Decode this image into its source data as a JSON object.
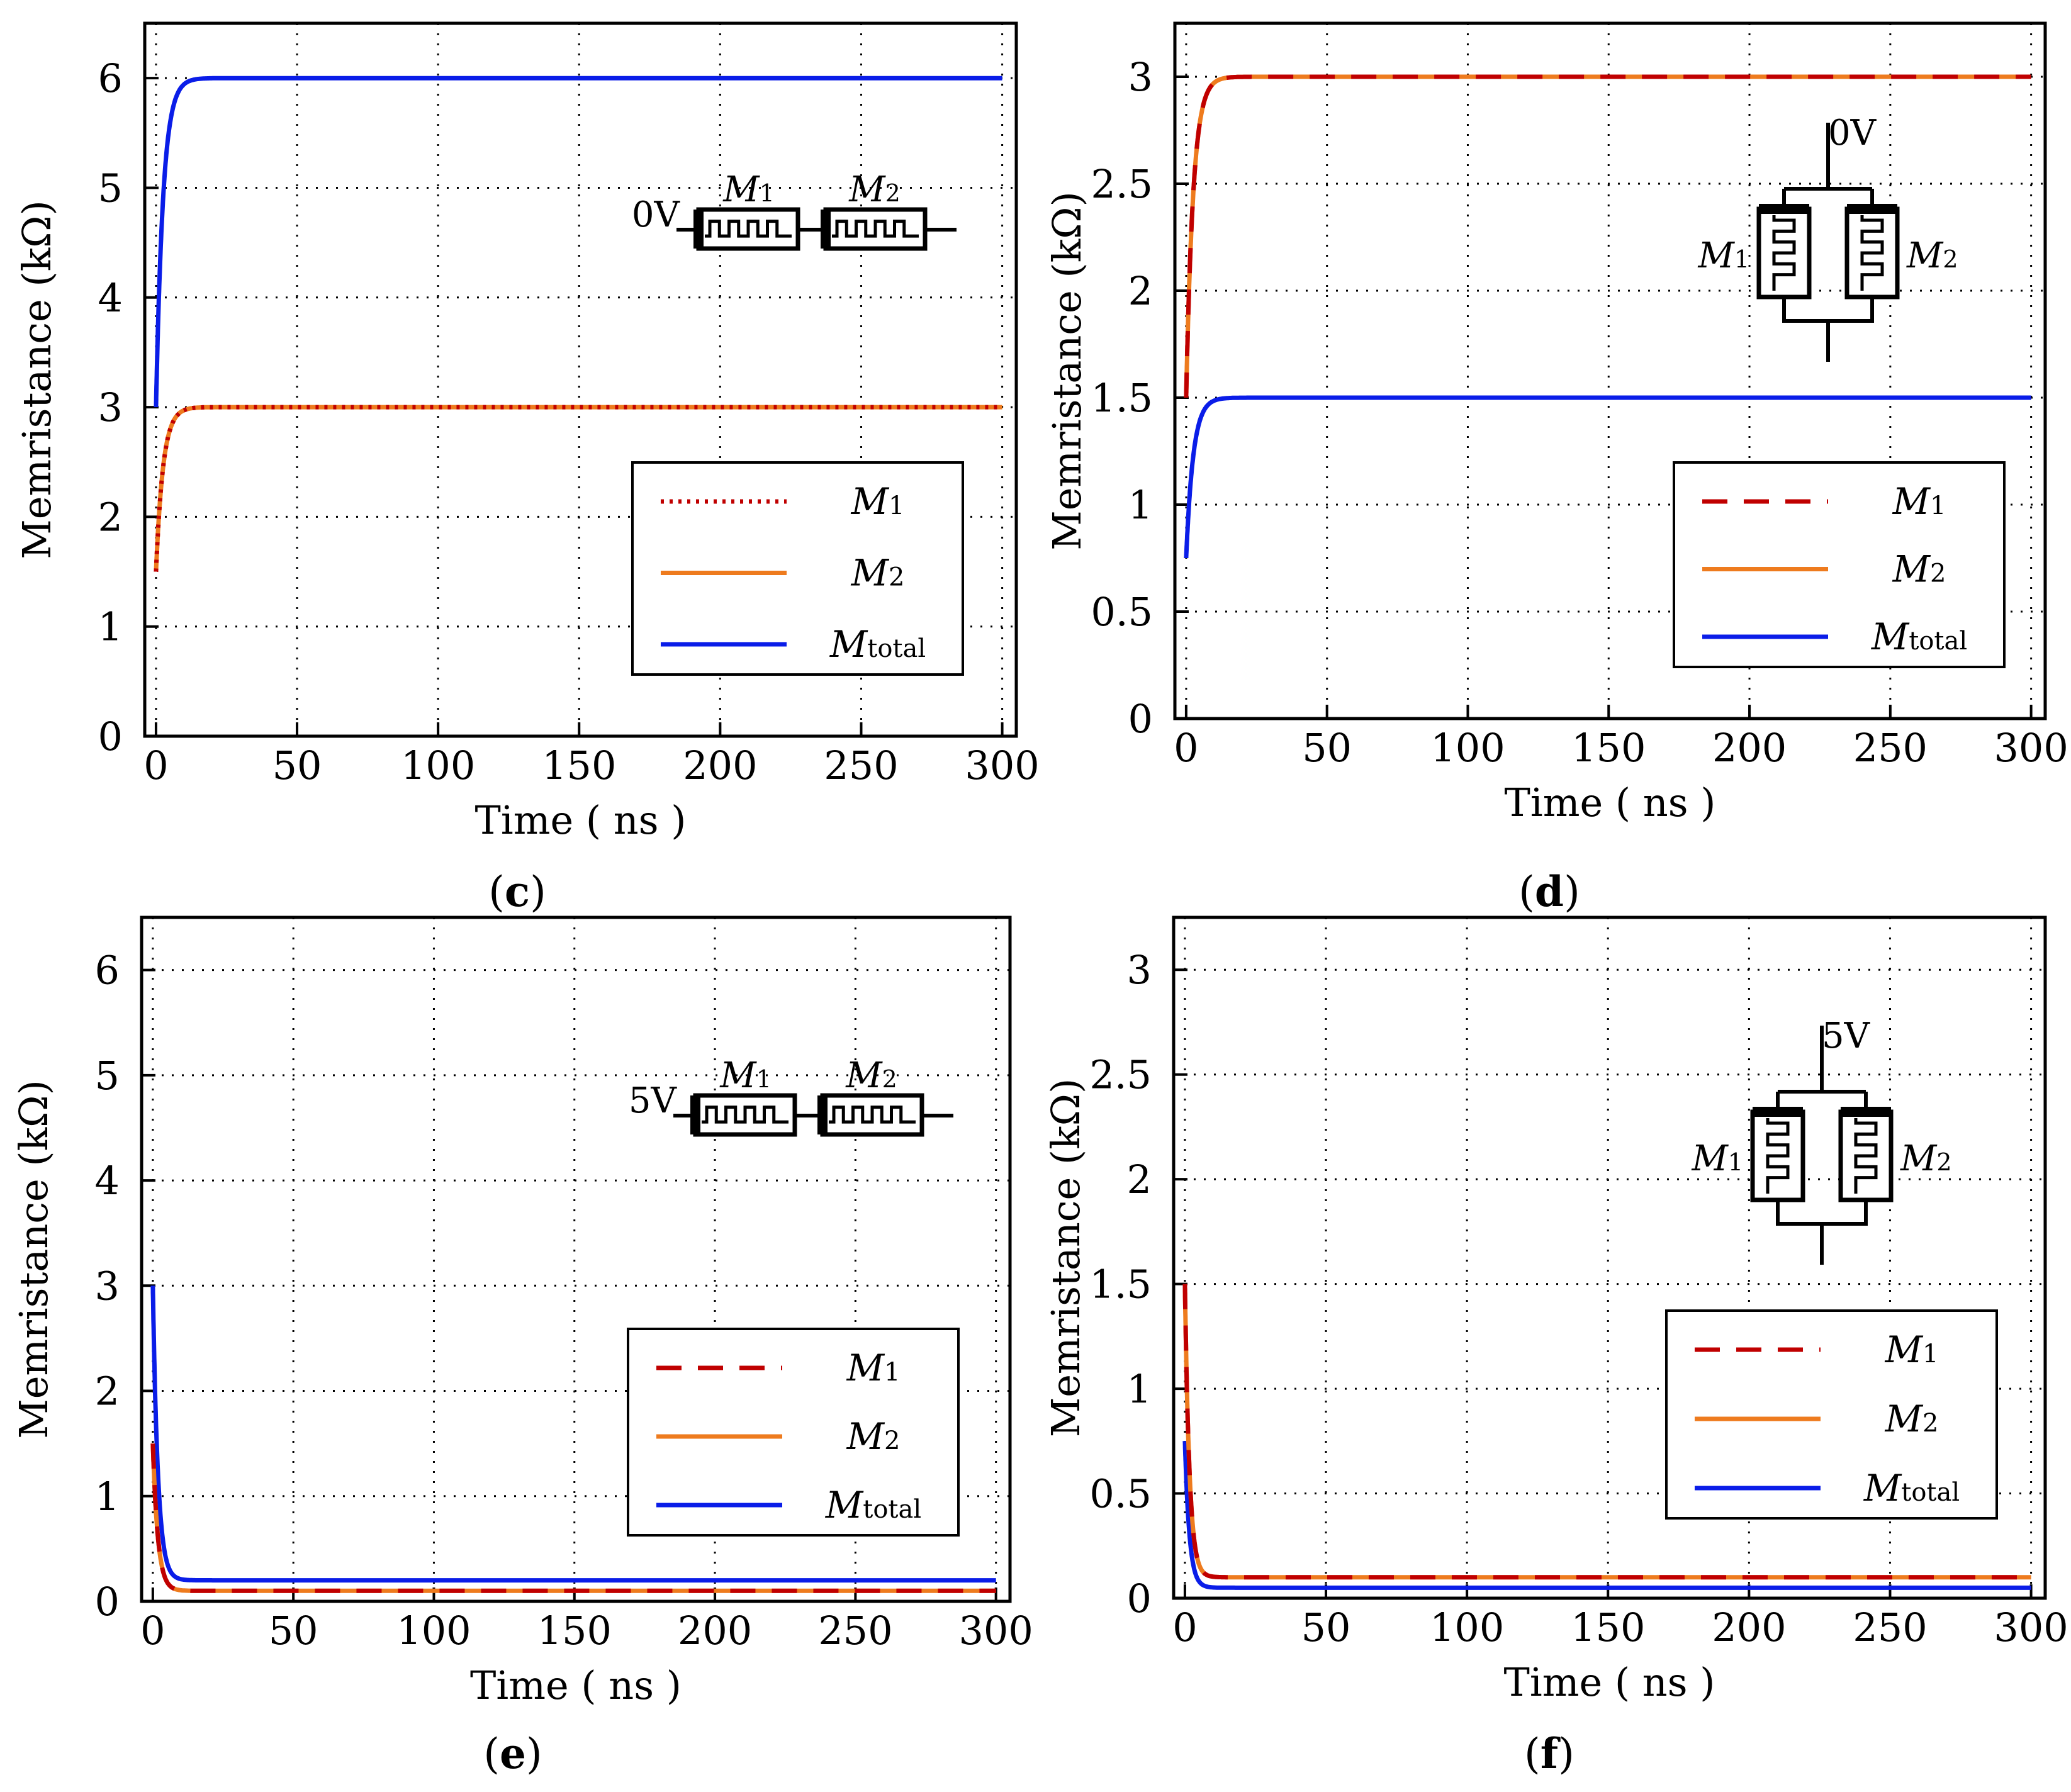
{
  "colors": {
    "m1": "#c00000",
    "m2": "#ee7b1e",
    "mtotal": "#0a1de8",
    "grid": "#000000"
  },
  "panels": [
    {
      "id": "c",
      "caption_letter": "c",
      "circuit": {
        "type": "series",
        "voltage": "0V"
      },
      "chart_data": {
        "type": "line",
        "xlabel": "Time ( ns )",
        "ylabel": "Memristance (kΩ)",
        "xlim": [
          -4,
          305
        ],
        "ylim": [
          0,
          6.5
        ],
        "xticks": [
          0,
          50,
          100,
          150,
          200,
          250,
          300
        ],
        "yticks": [
          0,
          1,
          2,
          3,
          4,
          5,
          6
        ],
        "ytick_labels": [
          "0",
          "1",
          "2",
          "3",
          "4",
          "5",
          "6"
        ],
        "grid": true,
        "legend_position": "lower-right",
        "series": [
          {
            "key": "m1",
            "name": "M",
            "subscript": "1",
            "style": "dotted",
            "start": 1.5,
            "end": 3.0,
            "tau": 2.5,
            "x_end": 300
          },
          {
            "key": "m2",
            "name": "M",
            "subscript": "2",
            "style": "solid",
            "start": 1.5,
            "end": 3.0,
            "tau": 2.5,
            "x_end": 300
          },
          {
            "key": "mtotal",
            "name": "M",
            "subscript": "total",
            "style": "solid",
            "start": 3.0,
            "end": 6.0,
            "tau": 2.5,
            "x_end": 300
          }
        ]
      }
    },
    {
      "id": "d",
      "caption_letter": "d",
      "circuit": {
        "type": "parallel",
        "voltage": "0V"
      },
      "chart_data": {
        "type": "line",
        "xlabel": "Time ( ns )",
        "ylabel": "Memristance (kΩ)",
        "xlim": [
          -4,
          305
        ],
        "ylim": [
          0,
          3.25
        ],
        "xticks": [
          0,
          50,
          100,
          150,
          200,
          250,
          300
        ],
        "yticks": [
          0,
          0.5,
          1,
          1.5,
          2,
          2.5,
          3
        ],
        "ytick_labels": [
          "0",
          "0.5",
          "1",
          "1.5",
          "2",
          "2.5",
          "3"
        ],
        "grid": true,
        "legend_position": "lower-right",
        "series": [
          {
            "key": "m1",
            "name": "M",
            "subscript": "1",
            "style": "dashed",
            "start": 1.5,
            "end": 3.0,
            "tau": 2.5,
            "x_end": 300
          },
          {
            "key": "m2",
            "name": "M",
            "subscript": "2",
            "style": "solid",
            "start": 1.5,
            "end": 3.0,
            "tau": 2.5,
            "x_end": 300
          },
          {
            "key": "mtotal",
            "name": "M",
            "subscript": "total",
            "style": "solid",
            "start": 0.75,
            "end": 1.5,
            "tau": 2.5,
            "x_end": 300
          }
        ]
      }
    },
    {
      "id": "e",
      "caption_letter": "e",
      "circuit": {
        "type": "series",
        "voltage": "5V"
      },
      "chart_data": {
        "type": "line",
        "xlabel": "Time ( ns )",
        "ylabel": "Memristance (kΩ)",
        "xlim": [
          -4,
          305
        ],
        "ylim": [
          0,
          6.5
        ],
        "xticks": [
          0,
          50,
          100,
          150,
          200,
          250,
          300
        ],
        "yticks": [
          0,
          1,
          2,
          3,
          4,
          5,
          6
        ],
        "ytick_labels": [
          "0",
          "1",
          "2",
          "3",
          "4",
          "5",
          "6"
        ],
        "grid": true,
        "legend_position": "lower-right",
        "series": [
          {
            "key": "m1",
            "name": "M",
            "subscript": "1",
            "style": "dashed",
            "start": 1.5,
            "end": 0.1,
            "tau": 1.8,
            "x_end": 300
          },
          {
            "key": "m2",
            "name": "M",
            "subscript": "2",
            "style": "solid",
            "start": 1.5,
            "end": 0.1,
            "tau": 1.8,
            "x_end": 300
          },
          {
            "key": "mtotal",
            "name": "M",
            "subscript": "total",
            "style": "solid",
            "start": 3.0,
            "end": 0.2,
            "tau": 1.8,
            "x_end": 300
          }
        ]
      }
    },
    {
      "id": "f",
      "caption_letter": "f",
      "circuit": {
        "type": "parallel",
        "voltage": "5V"
      },
      "chart_data": {
        "type": "line",
        "xlabel": "Time ( ns )",
        "ylabel": "Memristance (kΩ)",
        "xlim": [
          -4,
          305
        ],
        "ylim": [
          0,
          3.25
        ],
        "xticks": [
          0,
          50,
          100,
          150,
          200,
          250,
          300
        ],
        "yticks": [
          0,
          0.5,
          1,
          1.5,
          2,
          2.5,
          3
        ],
        "ytick_labels": [
          "0",
          "0.5",
          "1",
          "1.5",
          "2",
          "2.5",
          "3"
        ],
        "grid": true,
        "legend_position": "lower-right",
        "series": [
          {
            "key": "m1",
            "name": "M",
            "subscript": "1",
            "style": "dashed",
            "start": 1.5,
            "end": 0.1,
            "tau": 1.6,
            "x_end": 300
          },
          {
            "key": "m2",
            "name": "M",
            "subscript": "2",
            "style": "solid",
            "start": 1.5,
            "end": 0.1,
            "tau": 1.6,
            "x_end": 300
          },
          {
            "key": "mtotal",
            "name": "M",
            "subscript": "total",
            "style": "solid",
            "start": 0.75,
            "end": 0.05,
            "tau": 1.6,
            "x_end": 300
          }
        ]
      }
    }
  ]
}
